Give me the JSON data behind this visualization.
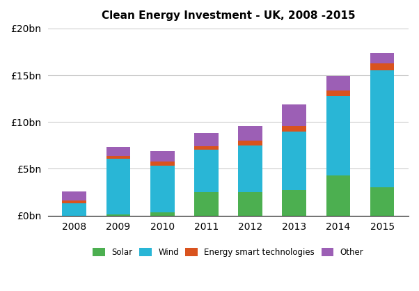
{
  "title": "Clean Energy Investment - UK, 2008 -2015",
  "years": [
    2008,
    2009,
    2010,
    2011,
    2012,
    2013,
    2014,
    2015
  ],
  "solar": [
    0.0,
    0.1,
    0.3,
    2.5,
    2.5,
    2.7,
    4.3,
    3.0
  ],
  "wind": [
    1.3,
    6.0,
    5.0,
    4.5,
    5.0,
    6.3,
    8.5,
    12.5
  ],
  "energy_smart": [
    0.3,
    0.3,
    0.5,
    0.4,
    0.5,
    0.6,
    0.6,
    0.8
  ],
  "other": [
    1.0,
    0.9,
    1.1,
    1.4,
    1.6,
    2.3,
    1.5,
    1.1
  ],
  "colors": {
    "solar": "#4caf50",
    "wind": "#29b6d6",
    "energy_smart": "#d9531e",
    "other": "#9c5fb5"
  },
  "ylim": [
    0,
    20
  ],
  "yticks": [
    0,
    5,
    10,
    15,
    20
  ],
  "ytick_labels": [
    "£0bn",
    "£5bn",
    "£10bn",
    "£15bn",
    "£20bn"
  ],
  "legend_labels": [
    "Solar",
    "Wind",
    "Energy smart technologies",
    "Other"
  ],
  "background_color": "#ffffff",
  "grid_color": "#cccccc"
}
